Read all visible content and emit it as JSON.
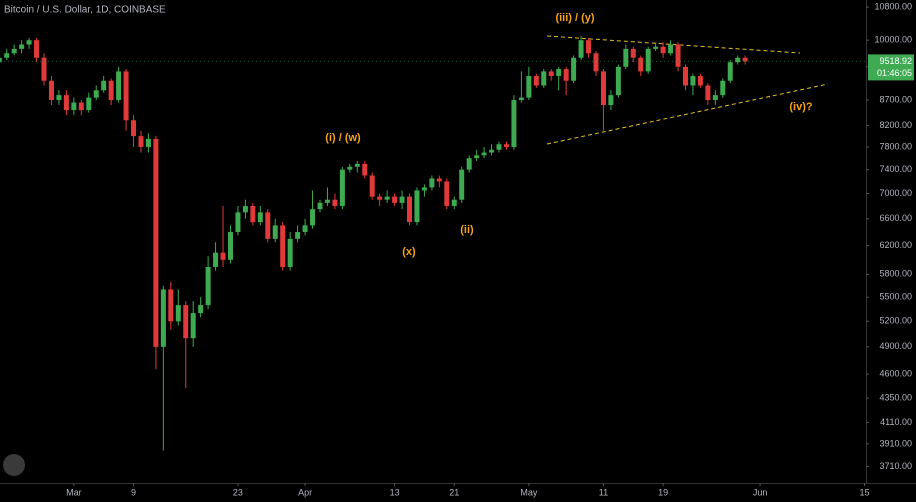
{
  "chart_data": {
    "type": "candlestick",
    "title": "Bitcoin / U.S. Dollar, 1D, COINBASE",
    "annotations": [
      "(iii) / (y)",
      "(i) / (w)",
      "(x)",
      "(ii)",
      "(iv)?"
    ],
    "last_price": 9518.92,
    "countdown": "01:46:05",
    "log": true,
    "up_color": "#3eab52",
    "down_color": "#e03a3a",
    "x": [
      -10,
      -9,
      -8,
      -7,
      -6,
      -5,
      -4,
      -3,
      -2,
      -1,
      0,
      1,
      2,
      3,
      4,
      5,
      6,
      7,
      8,
      9,
      10,
      11,
      12,
      13,
      14,
      15,
      16,
      17,
      18,
      19,
      20,
      21,
      22,
      23,
      24,
      25,
      26,
      27,
      28,
      29,
      30,
      31,
      32,
      33,
      34,
      35,
      36,
      37,
      38,
      39,
      40,
      41,
      42,
      43,
      44,
      45,
      46,
      47,
      48,
      49,
      50,
      51,
      52,
      53,
      54,
      55,
      56,
      57,
      58,
      59,
      60,
      61,
      62,
      63,
      64,
      65,
      66,
      67,
      68,
      69,
      70,
      71,
      72,
      73,
      74,
      75,
      76,
      77,
      78,
      79,
      80,
      81,
      82,
      83,
      84,
      85,
      86,
      87,
      88,
      89,
      90
    ],
    "open": [
      9500,
      9600,
      9700,
      9800,
      9900,
      10000,
      9600,
      9100,
      8700,
      8800,
      8500,
      8650,
      8500,
      8750,
      8900,
      9100,
      8700,
      9300,
      8300,
      8000,
      7800,
      7950,
      4900,
      5600,
      5200,
      5400,
      5000,
      5300,
      5400,
      5900,
      6100,
      6000,
      6400,
      6700,
      6800,
      6550,
      6700,
      6300,
      6500,
      5900,
      6300,
      6400,
      6500,
      6750,
      6850,
      6900,
      6800,
      7400,
      7450,
      7500,
      7300,
      6950,
      6900,
      6950,
      6850,
      6950,
      6550,
      7050,
      7100,
      7250,
      7200,
      6800,
      6900,
      7400,
      7600,
      7650,
      7700,
      7750,
      7850,
      7800,
      8700,
      8750,
      9200,
      9000,
      9300,
      9200,
      9350,
      9100,
      9600,
      10000,
      9700,
      9300,
      8600,
      8800,
      9400,
      9800,
      9600,
      9300,
      9800,
      9850,
      9700,
      9900,
      9400,
      9000,
      9200,
      9000,
      8700,
      8800,
      9100,
      9500,
      9600
    ],
    "high": [
      9700,
      9800,
      9900,
      10000,
      10050,
      10050,
      9700,
      9200,
      8900,
      8900,
      8750,
      8700,
      8850,
      9000,
      9200,
      9150,
      9400,
      9350,
      8400,
      8100,
      8050,
      8000,
      5650,
      5700,
      5600,
      5450,
      5450,
      5500,
      6050,
      6250,
      6800,
      6500,
      6800,
      6900,
      6850,
      6800,
      6750,
      6600,
      6550,
      6400,
      6500,
      6600,
      7050,
      6900,
      7100,
      7000,
      7450,
      7500,
      7550,
      7550,
      7350,
      7000,
      7050,
      7000,
      7050,
      7000,
      7100,
      7150,
      7300,
      7300,
      7250,
      6950,
      7450,
      7650,
      7750,
      7800,
      7850,
      7900,
      7900,
      8800,
      9300,
      9400,
      9250,
      9350,
      9350,
      9400,
      9400,
      9650,
      10100,
      10050,
      9750,
      9350,
      8900,
      9450,
      9900,
      9850,
      9650,
      9850,
      9950,
      9950,
      10000,
      9950,
      9450,
      9250,
      9250,
      9050,
      8900,
      9150,
      9550,
      9650,
      9650
    ],
    "low": [
      9400,
      9550,
      9650,
      9700,
      9800,
      9500,
      9000,
      8600,
      8600,
      8400,
      8400,
      8400,
      8450,
      8700,
      8850,
      8600,
      8650,
      8100,
      7800,
      7700,
      7700,
      4650,
      3850,
      5100,
      5150,
      4450,
      4900,
      5250,
      5350,
      5850,
      5900,
      5950,
      6350,
      6600,
      6500,
      6500,
      6250,
      6250,
      5850,
      5850,
      6250,
      6350,
      6450,
      6700,
      6800,
      6750,
      6750,
      7350,
      7350,
      7250,
      6900,
      6800,
      6850,
      6800,
      6750,
      6500,
      6500,
      6950,
      7050,
      7100,
      6750,
      6750,
      6850,
      7350,
      7550,
      7600,
      7650,
      7700,
      7750,
      7750,
      8650,
      8700,
      8950,
      8950,
      9100,
      8900,
      8800,
      9050,
      9550,
      9600,
      9200,
      8100,
      8500,
      8750,
      9350,
      9500,
      9200,
      9250,
      9750,
      9600,
      9650,
      9300,
      8900,
      8800,
      8950,
      8600,
      8600,
      8750,
      9050,
      9450,
      9450
    ],
    "close": [
      9600,
      9700,
      9800,
      9900,
      10000,
      9600,
      9100,
      8700,
      8800,
      8500,
      8650,
      8500,
      8750,
      8900,
      9100,
      8700,
      9300,
      8300,
      8000,
      7800,
      7950,
      4900,
      5600,
      5200,
      5400,
      5000,
      5300,
      5400,
      5900,
      6100,
      6000,
      6400,
      6700,
      6800,
      6550,
      6700,
      6300,
      6500,
      5900,
      6300,
      6400,
      6500,
      6750,
      6850,
      6900,
      6800,
      7400,
      7450,
      7500,
      7300,
      6950,
      6900,
      6950,
      6850,
      6950,
      6550,
      7050,
      7100,
      7250,
      7200,
      6800,
      6900,
      7400,
      7600,
      7650,
      7700,
      7750,
      7850,
      7800,
      8700,
      8750,
      9200,
      9000,
      9300,
      9200,
      9350,
      9100,
      9600,
      10000,
      9700,
      9300,
      8600,
      8800,
      9400,
      9800,
      9600,
      9300,
      9800,
      9850,
      9700,
      9900,
      9400,
      9000,
      9200,
      9000,
      8700,
      8800,
      9100,
      9500,
      9600,
      9518.92
    ],
    "xlim": [
      -9.9,
      106.2
    ],
    "xticks": [
      {
        "value": 0,
        "label": "Mar"
      },
      {
        "value": 8,
        "label": "9"
      },
      {
        "value": 22,
        "label": "23"
      },
      {
        "value": 31,
        "label": "Apr"
      },
      {
        "value": 43,
        "label": "13"
      },
      {
        "value": 51,
        "label": "21"
      },
      {
        "value": 61,
        "label": "May"
      },
      {
        "value": 71,
        "label": "11"
      },
      {
        "value": 79,
        "label": "19"
      },
      {
        "value": 92,
        "label": "Jun"
      },
      {
        "value": 106,
        "label": "15"
      }
    ],
    "ylim": [
      3570,
      10980
    ],
    "yticks": [
      {
        "value": 10800,
        "label": "10800.00"
      },
      {
        "value": 10000,
        "label": "10000.00"
      },
      {
        "value": 9400,
        "label": "9400.00"
      },
      {
        "value": 8700,
        "label": "8700.00"
      },
      {
        "value": 8200,
        "label": "8200.00"
      },
      {
        "value": 7800,
        "label": "7800.00"
      },
      {
        "value": 7400,
        "label": "7400.00"
      },
      {
        "value": 7000,
        "label": "7000.00"
      },
      {
        "value": 6600,
        "label": "6600.00"
      },
      {
        "value": 6200,
        "label": "6200.00"
      },
      {
        "value": 5800,
        "label": "5800.00"
      },
      {
        "value": 5500,
        "label": "5500.00"
      },
      {
        "value": 5200,
        "label": "5200.00"
      },
      {
        "value": 4900,
        "label": "4900.00"
      },
      {
        "value": 4600,
        "label": "4600.00"
      },
      {
        "value": 4350,
        "label": "4350.00"
      },
      {
        "value": 4110,
        "label": "4110.00"
      },
      {
        "value": 3910,
        "label": "3910.00"
      },
      {
        "value": 3710,
        "label": "3710.00"
      }
    ]
  }
}
